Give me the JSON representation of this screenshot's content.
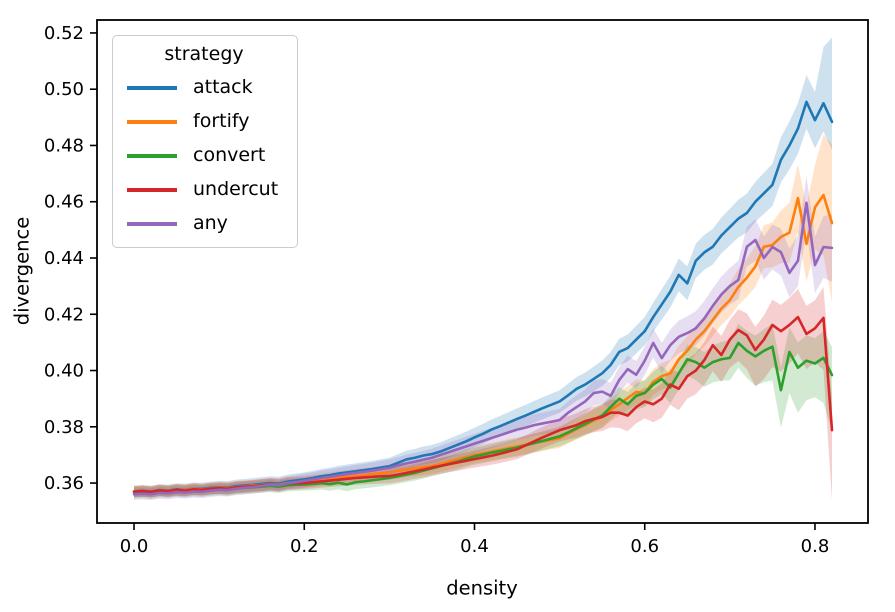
{
  "chart_data": {
    "type": "line",
    "title": "",
    "xlabel": "density",
    "ylabel": "divergence",
    "xlim": [
      -0.0435,
      0.8623
    ],
    "ylim": [
      0.3458,
      0.5246
    ],
    "xticks": [
      0.0,
      0.2,
      0.4,
      0.6,
      0.8
    ],
    "yticks": [
      0.36,
      0.38,
      0.4,
      0.42,
      0.44,
      0.46,
      0.48,
      0.5,
      0.52
    ],
    "grid": false,
    "legend": {
      "title": "strategy",
      "position": "upper left"
    },
    "x_start": 0.0,
    "x_step": 0.01,
    "band_alpha": 0.22,
    "band_x": [
      0,
      0.2,
      0.4,
      0.5,
      0.6,
      0.65,
      0.7,
      0.75,
      0.78,
      0.8,
      0.82
    ],
    "series": [
      {
        "name": "attack",
        "color": "#1f77b4",
        "values": [
          0.357,
          0.3572,
          0.357,
          0.3575,
          0.3573,
          0.3578,
          0.3576,
          0.358,
          0.3579,
          0.3583,
          0.3585,
          0.3584,
          0.3589,
          0.3591,
          0.3594,
          0.3597,
          0.36,
          0.3598,
          0.3605,
          0.3609,
          0.3613,
          0.3618,
          0.3624,
          0.3628,
          0.3634,
          0.3638,
          0.3642,
          0.3646,
          0.365,
          0.3655,
          0.366,
          0.3672,
          0.3684,
          0.369,
          0.3698,
          0.3703,
          0.3712,
          0.3724,
          0.3736,
          0.3748,
          0.3762,
          0.3775,
          0.379,
          0.3802,
          0.3815,
          0.3828,
          0.384,
          0.3853,
          0.3866,
          0.3878,
          0.389,
          0.3912,
          0.3935,
          0.395,
          0.397,
          0.399,
          0.402,
          0.4066,
          0.408,
          0.411,
          0.414,
          0.419,
          0.4235,
          0.428,
          0.434,
          0.431,
          0.439,
          0.442,
          0.444,
          0.448,
          0.451,
          0.454,
          0.456,
          0.46,
          0.463,
          0.466,
          0.4749,
          0.48,
          0.486,
          0.4955,
          0.489,
          0.495,
          0.4884
        ],
        "band_upper": [
          0.002,
          0.0025,
          0.0035,
          0.004,
          0.005,
          0.006,
          0.0065,
          0.0075,
          0.009,
          0.01,
          0.03
        ],
        "band_lower": [
          0.002,
          0.0025,
          0.0035,
          0.004,
          0.005,
          0.006,
          0.0065,
          0.0075,
          0.009,
          0.01,
          0.01
        ]
      },
      {
        "name": "fortify",
        "color": "#ff7f0e",
        "values": [
          0.357,
          0.3571,
          0.3569,
          0.3574,
          0.3572,
          0.3576,
          0.3575,
          0.3579,
          0.3577,
          0.3581,
          0.3583,
          0.3582,
          0.3586,
          0.3588,
          0.3591,
          0.3593,
          0.3596,
          0.3594,
          0.36,
          0.3602,
          0.3605,
          0.3608,
          0.3612,
          0.3615,
          0.3619,
          0.3622,
          0.3625,
          0.3628,
          0.3632,
          0.3635,
          0.3638,
          0.3643,
          0.3648,
          0.3652,
          0.3656,
          0.366,
          0.3668,
          0.3676,
          0.3684,
          0.3692,
          0.37,
          0.3706,
          0.3712,
          0.3718,
          0.3724,
          0.373,
          0.3736,
          0.3742,
          0.3748,
          0.3754,
          0.376,
          0.3776,
          0.3792,
          0.3806,
          0.3822,
          0.3835,
          0.386,
          0.388,
          0.3902,
          0.3924,
          0.392,
          0.396,
          0.398,
          0.399,
          0.404,
          0.407,
          0.411,
          0.414,
          0.418,
          0.422,
          0.425,
          0.4297,
          0.433,
          0.437,
          0.444,
          0.4446,
          0.4475,
          0.449,
          0.4613,
          0.445,
          0.458,
          0.4624,
          0.4524
        ],
        "band_upper": [
          0.002,
          0.0022,
          0.003,
          0.0035,
          0.0045,
          0.005,
          0.006,
          0.008,
          0.012,
          0.015,
          0.028
        ],
        "band_lower": [
          0.002,
          0.0022,
          0.003,
          0.0035,
          0.0045,
          0.005,
          0.006,
          0.008,
          0.012,
          0.015,
          0.028
        ]
      },
      {
        "name": "convert",
        "color": "#2ca02c",
        "values": [
          0.3565,
          0.3567,
          0.3564,
          0.357,
          0.3568,
          0.3572,
          0.357,
          0.3574,
          0.3572,
          0.3576,
          0.3578,
          0.3576,
          0.3581,
          0.3583,
          0.3585,
          0.3587,
          0.359,
          0.3587,
          0.3592,
          0.3594,
          0.3595,
          0.3597,
          0.36,
          0.3596,
          0.3601,
          0.3595,
          0.3603,
          0.3606,
          0.361,
          0.3614,
          0.3618,
          0.3624,
          0.363,
          0.3636,
          0.3644,
          0.3652,
          0.366,
          0.3668,
          0.3676,
          0.3686,
          0.3695,
          0.3701,
          0.3708,
          0.3714,
          0.372,
          0.3726,
          0.3734,
          0.3742,
          0.375,
          0.3758,
          0.3766,
          0.378,
          0.3795,
          0.381,
          0.3826,
          0.384,
          0.387,
          0.39,
          0.388,
          0.391,
          0.392,
          0.395,
          0.397,
          0.394,
          0.399,
          0.404,
          0.403,
          0.401,
          0.403,
          0.404,
          0.4045,
          0.4098,
          0.407,
          0.405,
          0.407,
          0.4085,
          0.393,
          0.4066,
          0.401,
          0.4035,
          0.4025,
          0.4045,
          0.3984
        ],
        "band_upper": [
          0.002,
          0.0022,
          0.003,
          0.0035,
          0.0045,
          0.005,
          0.0065,
          0.008,
          0.009,
          0.009,
          0.01
        ],
        "band_lower": [
          0.002,
          0.0022,
          0.003,
          0.0035,
          0.005,
          0.006,
          0.008,
          0.012,
          0.016,
          0.012,
          0.02
        ]
      },
      {
        "name": "undercut",
        "color": "#d62728",
        "values": [
          0.357,
          0.3572,
          0.3569,
          0.3574,
          0.3571,
          0.3576,
          0.3573,
          0.3578,
          0.3576,
          0.358,
          0.3582,
          0.358,
          0.3585,
          0.3587,
          0.3589,
          0.3592,
          0.3595,
          0.3592,
          0.3598,
          0.3599,
          0.36,
          0.3603,
          0.3606,
          0.3609,
          0.3612,
          0.3615,
          0.3618,
          0.362,
          0.3622,
          0.3624,
          0.3625,
          0.363,
          0.3636,
          0.3642,
          0.3648,
          0.3655,
          0.3661,
          0.3667,
          0.3673,
          0.3679,
          0.3685,
          0.3691,
          0.3697,
          0.3704,
          0.3712,
          0.372,
          0.3734,
          0.3748,
          0.3762,
          0.3775,
          0.3788,
          0.3797,
          0.3806,
          0.382,
          0.3828,
          0.3835,
          0.385,
          0.385,
          0.384,
          0.387,
          0.389,
          0.388,
          0.39,
          0.395,
          0.3935,
          0.398,
          0.4,
          0.4037,
          0.409,
          0.4055,
          0.411,
          0.4144,
          0.4125,
          0.4073,
          0.411,
          0.4162,
          0.414,
          0.4162,
          0.419,
          0.413,
          0.415,
          0.4187,
          0.3788
        ],
        "band_upper": [
          0.002,
          0.0022,
          0.003,
          0.004,
          0.005,
          0.006,
          0.007,
          0.009,
          0.01,
          0.01,
          0.012
        ],
        "band_lower": [
          0.002,
          0.0022,
          0.003,
          0.004,
          0.006,
          0.008,
          0.01,
          0.015,
          0.013,
          0.012,
          0.025
        ]
      },
      {
        "name": "any",
        "color": "#9467bd",
        "values": [
          0.356,
          0.3562,
          0.356,
          0.3565,
          0.3563,
          0.3568,
          0.3566,
          0.357,
          0.3569,
          0.3573,
          0.3576,
          0.3575,
          0.358,
          0.3583,
          0.3586,
          0.359,
          0.3594,
          0.3592,
          0.3599,
          0.3603,
          0.3608,
          0.3613,
          0.3618,
          0.3622,
          0.3627,
          0.3632,
          0.3636,
          0.364,
          0.3644,
          0.3649,
          0.3654,
          0.3662,
          0.367,
          0.3676,
          0.3683,
          0.369,
          0.37,
          0.371,
          0.372,
          0.373,
          0.374,
          0.375,
          0.376,
          0.377,
          0.378,
          0.379,
          0.3797,
          0.3806,
          0.3812,
          0.3818,
          0.3824,
          0.385,
          0.387,
          0.389,
          0.392,
          0.3925,
          0.391,
          0.3966,
          0.4005,
          0.3985,
          0.4035,
          0.4098,
          0.4044,
          0.409,
          0.412,
          0.4133,
          0.415,
          0.4185,
          0.423,
          0.427,
          0.43,
          0.4322,
          0.444,
          0.4464,
          0.44,
          0.4439,
          0.4421,
          0.4347,
          0.439,
          0.4596,
          0.4375,
          0.4439,
          0.4436
        ],
        "band_upper": [
          0.002,
          0.0025,
          0.0035,
          0.004,
          0.005,
          0.006,
          0.0065,
          0.008,
          0.009,
          0.01,
          0.012
        ],
        "band_lower": [
          0.002,
          0.0025,
          0.0035,
          0.004,
          0.005,
          0.006,
          0.0065,
          0.008,
          0.009,
          0.01,
          0.012
        ]
      }
    ]
  }
}
